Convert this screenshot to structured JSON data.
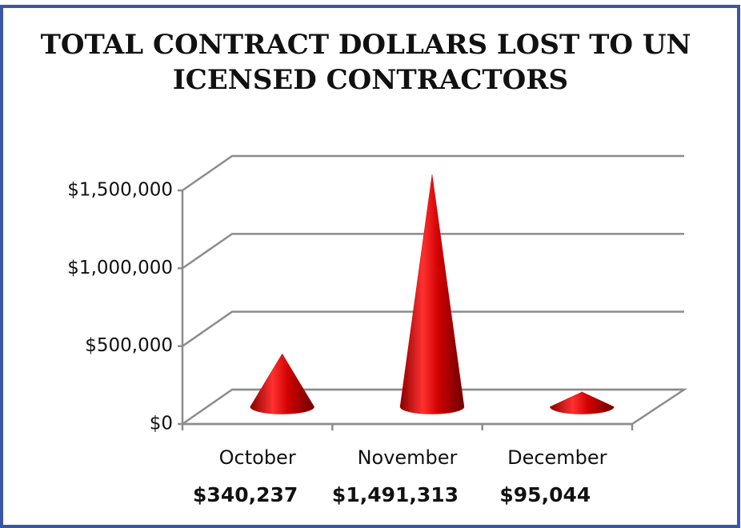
{
  "chart_data": {
    "type": "cone",
    "title": "TOTAL CONTRACT DOLLARS LOST TO UNLICENSED CONTRACTORS",
    "categories": [
      "October",
      "November",
      "December"
    ],
    "values": [
      340237,
      1491313,
      95044
    ],
    "value_labels": [
      "$340,237",
      "$1,491,313",
      "$95,044"
    ],
    "color": "#d40000",
    "ylim": [
      0,
      1500000
    ],
    "yticks": [
      {
        "value": 0,
        "label": "$0"
      },
      {
        "value": 500000,
        "label": "$500,000"
      },
      {
        "value": 1000000,
        "label": "$1,000,000"
      },
      {
        "value": 1500000,
        "label": "$1,500,000"
      }
    ],
    "grid": true
  }
}
